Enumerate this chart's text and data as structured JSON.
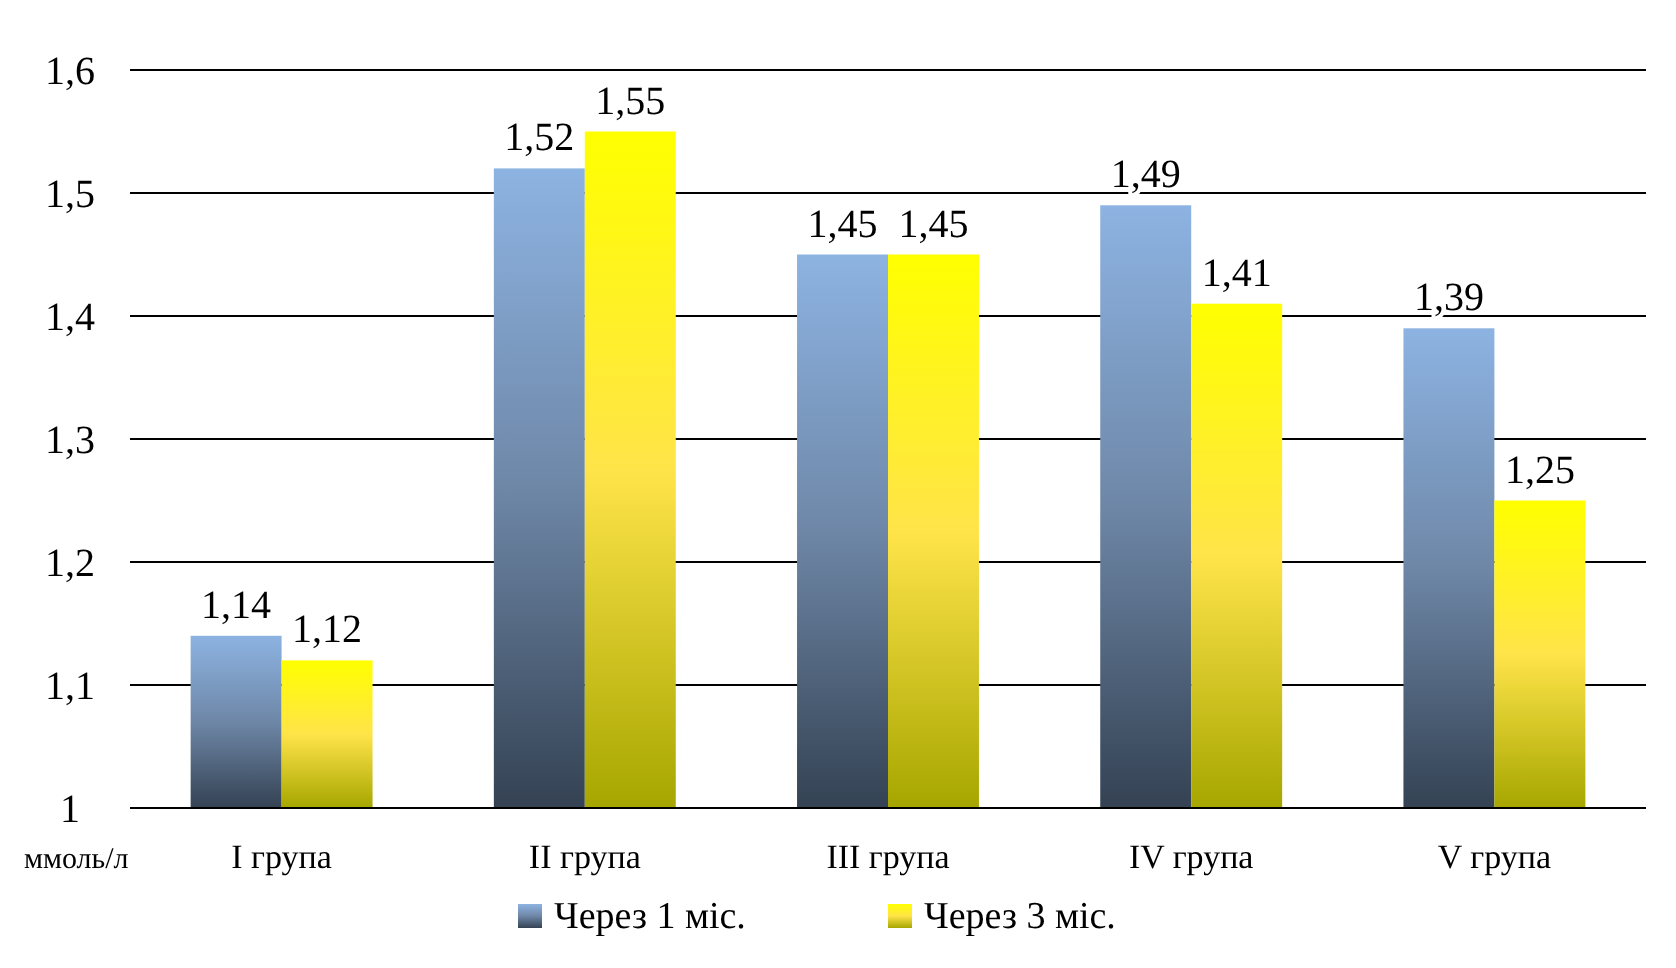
{
  "chart_data": {
    "type": "bar",
    "ylabel": "ммоль/л",
    "categories": [
      "I група",
      "II група",
      "III група",
      "IV група",
      "V група"
    ],
    "series": [
      {
        "name": "Через 1 міс.",
        "color": "#8db3e2",
        "values": [
          1.14,
          1.52,
          1.45,
          1.49,
          1.39
        ],
        "value_labels": [
          "1,14",
          "1,52",
          "1,45",
          "1,49",
          "1,39"
        ]
      },
      {
        "name": "Через 3 міс.",
        "color": "#ffff00",
        "values": [
          1.12,
          1.55,
          1.45,
          1.41,
          1.25
        ],
        "value_labels": [
          "1,12",
          "1,55",
          "1,45",
          "1,41",
          "1,25"
        ]
      }
    ],
    "ylim": [
      1,
      1.6
    ],
    "yticks": [
      1,
      {
        "value": 1.1,
        "label": "1,1"
      },
      {
        "value": 1.2,
        "label": "1,2"
      },
      {
        "value": 1.3,
        "label": "1,3"
      },
      {
        "value": 1.4,
        "label": "1,4"
      },
      {
        "value": 1.5,
        "label": "1,5"
      },
      {
        "value": 1.6,
        "label": "1,6"
      }
    ],
    "grid": "y",
    "legend": "bottom"
  }
}
